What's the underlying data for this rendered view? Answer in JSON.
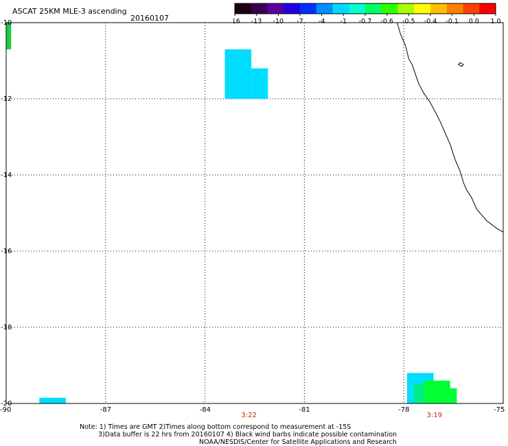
{
  "header": {
    "title": "ASCAT 25KM MLE-3 ascending",
    "date": "20160107"
  },
  "colorbar": {
    "colors": [
      "#1a0010",
      "#3a0050",
      "#5a00a0",
      "#2000e0",
      "#0030ff",
      "#0090ff",
      "#00d8ff",
      "#00ffcc",
      "#00ff60",
      "#30ff00",
      "#a8ff00",
      "#ffff00",
      "#ffc000",
      "#ff8000",
      "#ff4000",
      "#ff0000"
    ],
    "tick_labels": [
      "-16",
      "-13",
      "-10",
      "-7",
      "-4",
      "-1",
      "-0.7",
      "-0.6",
      "-0.5",
      "-0.4",
      "-0.1",
      "0.0",
      "1.0"
    ]
  },
  "map": {
    "lon_range": [
      -90,
      -75
    ],
    "lat_range": [
      -20,
      -10
    ],
    "lon_ticks": [
      -90,
      -87,
      -84,
      -81,
      -78,
      -75
    ],
    "lon_tick_labels": [
      "-90",
      "-87",
      "-84",
      "-81",
      "-78",
      "-75"
    ],
    "lat_ticks": [
      -10,
      -12,
      -14,
      -16,
      -18,
      -20
    ],
    "lat_tick_labels": [
      "-10",
      "-12",
      "-14",
      "-16",
      "-18",
      "-20"
    ],
    "time_labels": [
      {
        "lon": -82.7,
        "text": "3:22"
      },
      {
        "lon": -77.1,
        "text": "3:19"
      }
    ],
    "cells": [
      {
        "lon0": -90.0,
        "lon1": -89.85,
        "lat0": -10.0,
        "lat1": -10.7,
        "color": "#22cc44"
      },
      {
        "lon0": -83.4,
        "lon1": -82.6,
        "lat0": -10.7,
        "lat1": -12.0,
        "color": "#00ddff"
      },
      {
        "lon0": -82.6,
        "lon1": -82.1,
        "lat0": -11.2,
        "lat1": -12.0,
        "color": "#00ddff"
      },
      {
        "lon0": -89.0,
        "lon1": -88.2,
        "lat0": -19.85,
        "lat1": -20.0,
        "color": "#00ddff"
      },
      {
        "lon0": -77.9,
        "lon1": -77.1,
        "lat0": -19.2,
        "lat1": -20.0,
        "color": "#00ddff"
      },
      {
        "lon0": -77.7,
        "lon1": -77.1,
        "lat0": -19.5,
        "lat1": -20.0,
        "color": "#00ee88"
      },
      {
        "lon0": -77.4,
        "lon1": -76.6,
        "lat0": -19.4,
        "lat1": -20.0,
        "color": "#00ff33"
      },
      {
        "lon0": -76.6,
        "lon1": -76.4,
        "lat0": -19.6,
        "lat1": -20.0,
        "color": "#00ff33"
      }
    ],
    "coastline": [
      [
        -78.2,
        -10.0
      ],
      [
        -78.1,
        -10.3
      ],
      [
        -77.95,
        -10.6
      ],
      [
        -77.85,
        -10.95
      ],
      [
        -77.75,
        -11.1
      ],
      [
        -77.65,
        -11.35
      ],
      [
        -77.55,
        -11.6
      ],
      [
        -77.4,
        -11.85
      ],
      [
        -77.2,
        -12.1
      ],
      [
        -77.05,
        -12.35
      ],
      [
        -76.9,
        -12.6
      ],
      [
        -76.75,
        -12.9
      ],
      [
        -76.6,
        -13.2
      ],
      [
        -76.45,
        -13.6
      ],
      [
        -76.3,
        -13.9
      ],
      [
        -76.2,
        -14.2
      ],
      [
        -76.1,
        -14.4
      ],
      [
        -75.95,
        -14.6
      ],
      [
        -75.8,
        -14.9
      ],
      [
        -75.5,
        -15.2
      ],
      [
        -75.2,
        -15.4
      ],
      [
        -75.0,
        -15.5
      ]
    ],
    "island": [
      [
        -76.3,
        -11.05
      ],
      [
        -76.2,
        -11.1
      ],
      [
        -76.25,
        -11.15
      ],
      [
        -76.35,
        -11.1
      ]
    ]
  },
  "footer": {
    "line1": "Note: 1) Times are GMT 2)Times along bottom correspond to measurement at -15S",
    "line2": "3)Data buffer is 22 hrs from 20160107 4) Black wind barbs indicate possible contamination",
    "line3": "NOAA/NESDIS/Center for Satellite Applications and Research"
  }
}
